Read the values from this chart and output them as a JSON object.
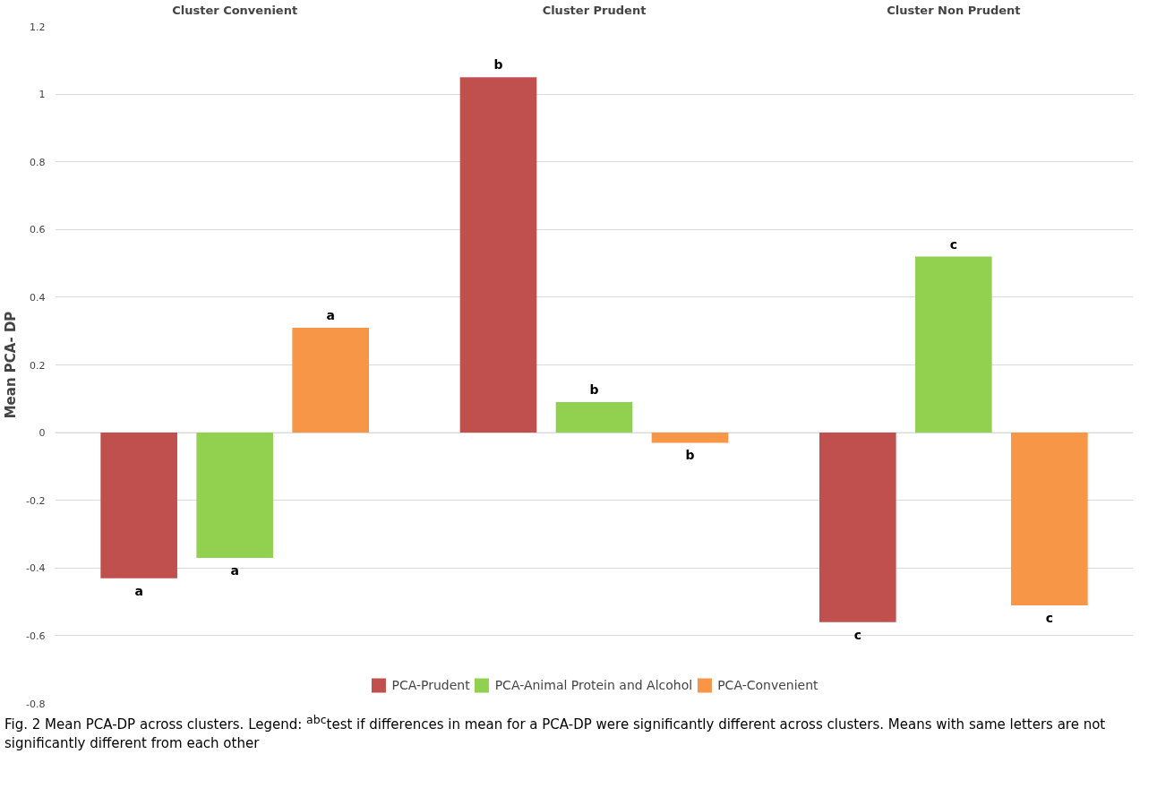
{
  "chart_data": {
    "type": "bar",
    "ylabel": "Mean PCA- DP",
    "categories": [
      "Cluster Convenient",
      "Cluster Prudent",
      "Cluster Non Prudent"
    ],
    "series": [
      {
        "name": "PCA-Prudent",
        "color": "#c0504d",
        "values": [
          -0.43,
          1.05,
          -0.56
        ],
        "value_labels": [
          "a",
          "b",
          "c"
        ]
      },
      {
        "name": "PCA-Animal Protein and Alcohol",
        "color": "#92d050",
        "values": [
          -0.37,
          0.09,
          0.52
        ],
        "value_labels": [
          "a",
          "b",
          "c"
        ]
      },
      {
        "name": "PCA-Convenient",
        "color": "#f79646",
        "values": [
          0.31,
          -0.03,
          -0.51
        ],
        "value_labels": [
          "a",
          "b",
          "c"
        ]
      }
    ],
    "ylim": [
      -0.8,
      1.2
    ],
    "yticks": [
      -0.8,
      -0.6,
      -0.4,
      -0.2,
      0,
      0.2,
      0.4,
      0.6,
      0.8,
      1,
      1.2
    ],
    "grid": "y",
    "legend": "bottom",
    "annotations": [
      "Fig. 2 Mean PCA-DP across clusters. Legend: $^{abc}$test if differences in mean for a PCA-DP were significantly different across clusters. Means with same letters are not significantly different from each other"
    ]
  }
}
